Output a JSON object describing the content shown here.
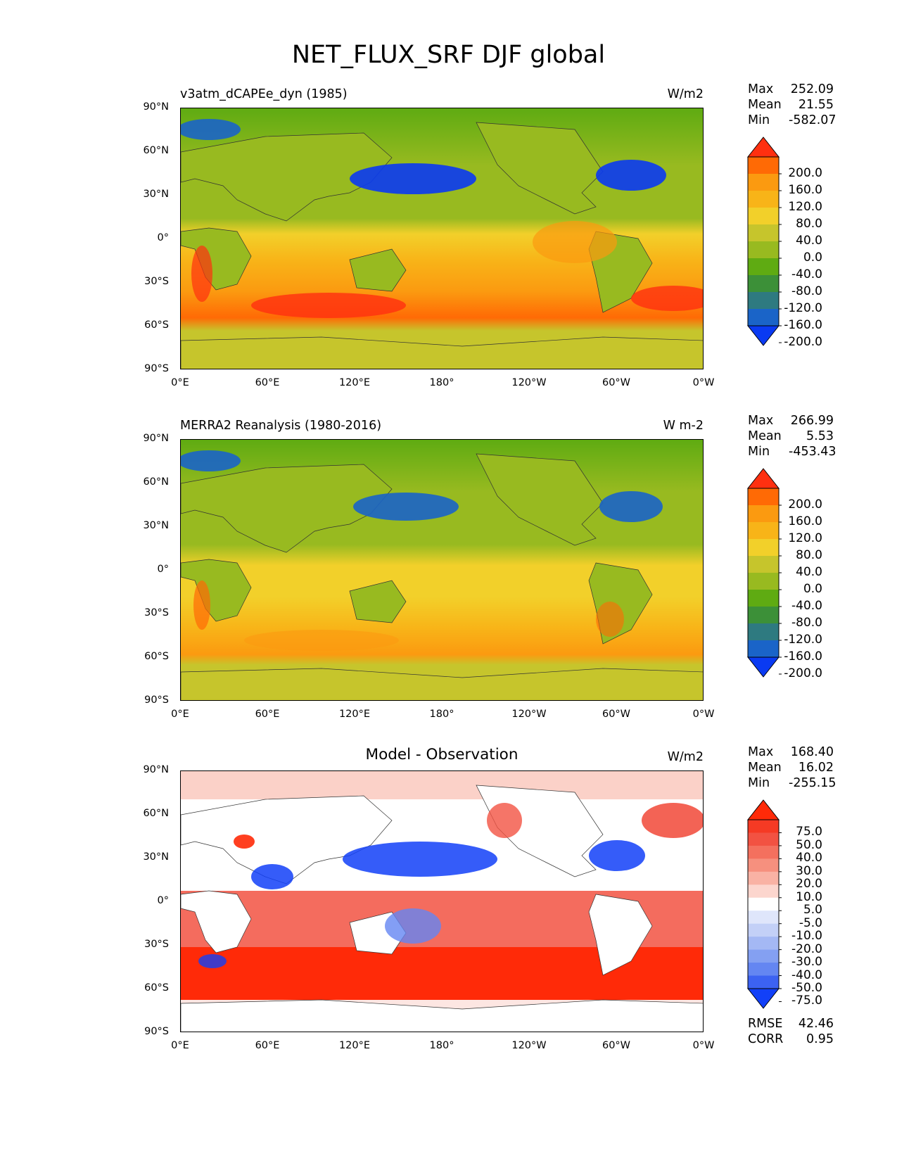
{
  "title": "NET_FLUX_SRF DJF global",
  "chart_data": [
    {
      "type": "heatmap",
      "title": "v3atm_dCAPEe_dyn (1985)",
      "units": "W/m2",
      "stats": {
        "Max": "252.09",
        "Mean": "21.55",
        "Min": "-582.07"
      },
      "xlim": [
        0,
        360
      ],
      "ylim": [
        -90,
        90
      ],
      "x_ticks": [
        "0°E",
        "60°E",
        "120°E",
        "180°",
        "120°W",
        "60°W",
        "0°W"
      ],
      "y_ticks": [
        "90°N",
        "60°N",
        "30°N",
        "0°",
        "30°S",
        "60°S",
        "90°S"
      ],
      "colorbar": {
        "levels": [
          "200.0",
          "160.0",
          "120.0",
          "80.0",
          "40.0",
          "0.0",
          "-40.0",
          "-80.0",
          "-120.0",
          "-160.0",
          "-200.0"
        ],
        "colors": [
          "#ff3010",
          "#ff6a05",
          "#fb9a10",
          "#f8b418",
          "#f2d02a",
          "#c6c52c",
          "#98ba20",
          "#5fab12",
          "#3c9038",
          "#2e7a80",
          "#1a64c8",
          "#0a3af2"
        ],
        "extend": "both"
      }
    },
    {
      "type": "heatmap",
      "title": "MERRA2 Reanalysis (1980-2016)",
      "units": "W m-2",
      "stats": {
        "Max": "266.99",
        "Mean": "5.53",
        "Min": "-453.43"
      },
      "xlim": [
        0,
        360
      ],
      "ylim": [
        -90,
        90
      ],
      "x_ticks": [
        "0°E",
        "60°E",
        "120°E",
        "180°",
        "120°W",
        "60°W",
        "0°W"
      ],
      "y_ticks": [
        "90°N",
        "60°N",
        "30°N",
        "0°",
        "30°S",
        "60°S",
        "90°S"
      ],
      "colorbar": {
        "levels": [
          "200.0",
          "160.0",
          "120.0",
          "80.0",
          "40.0",
          "0.0",
          "-40.0",
          "-80.0",
          "-120.0",
          "-160.0",
          "-200.0"
        ],
        "colors": [
          "#ff3010",
          "#ff6a05",
          "#fb9a10",
          "#f8b418",
          "#f2d02a",
          "#c6c52c",
          "#98ba20",
          "#5fab12",
          "#3c9038",
          "#2e7a80",
          "#1a64c8",
          "#0a3af2"
        ],
        "extend": "both"
      }
    },
    {
      "type": "heatmap",
      "title": "Model - Observation",
      "units": "W/m2",
      "stats": {
        "Max": "168.40",
        "Mean": "16.02",
        "Min": "-255.15"
      },
      "extra_stats": {
        "RMSE": "42.46",
        "CORR": "0.95"
      },
      "xlim": [
        0,
        360
      ],
      "ylim": [
        -90,
        90
      ],
      "x_ticks": [
        "0°E",
        "60°E",
        "120°E",
        "180°",
        "120°W",
        "60°W",
        "0°W"
      ],
      "y_ticks": [
        "90°N",
        "60°N",
        "30°N",
        "0°",
        "30°S",
        "60°S",
        "90°S"
      ],
      "colorbar": {
        "levels": [
          "75.0",
          "50.0",
          "40.0",
          "30.0",
          "20.0",
          "10.0",
          "5.0",
          "-5.0",
          "-10.0",
          "-20.0",
          "-30.0",
          "-40.0",
          "-50.0",
          "-75.0"
        ],
        "colors": [
          "#ff2a08",
          "#f53a24",
          "#f25242",
          "#f4705e",
          "#f6907e",
          "#f9b2a4",
          "#fcd6ce",
          "#ffffff",
          "#dfe6fb",
          "#c3d0f7",
          "#a4b8f4",
          "#84a0f2",
          "#6486f2",
          "#3c62f2",
          "#1240f8"
        ],
        "extend": "both"
      }
    }
  ]
}
